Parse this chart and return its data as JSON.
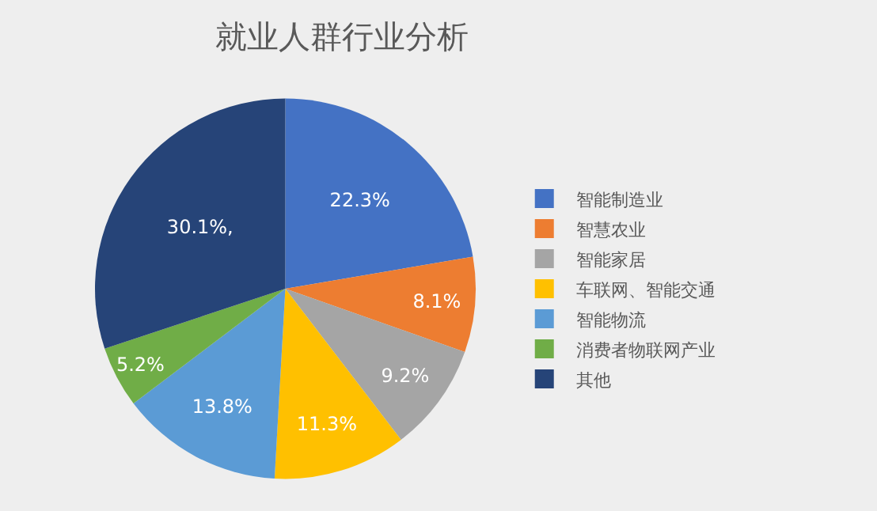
{
  "chart_data": {
    "type": "pie",
    "title": "就业人群行业分析",
    "categories": [
      "智能制造业",
      "智慧农业",
      "智能家居",
      "车联网、智能交通",
      "智能物流",
      "消费者物联网产业",
      "其他"
    ],
    "values": [
      22.3,
      8.1,
      9.2,
      11.3,
      13.8,
      5.2,
      30.1
    ],
    "value_labels": [
      "22.3%",
      "8.1%",
      "9.2%",
      "11.3%",
      "13.8%",
      "5.2%",
      "30.1%,"
    ],
    "colors": [
      "#4472c4",
      "#ed7d31",
      "#a5a5a5",
      "#ffc000",
      "#5b9bd5",
      "#70ad47",
      "#264478"
    ],
    "legend": "right"
  }
}
